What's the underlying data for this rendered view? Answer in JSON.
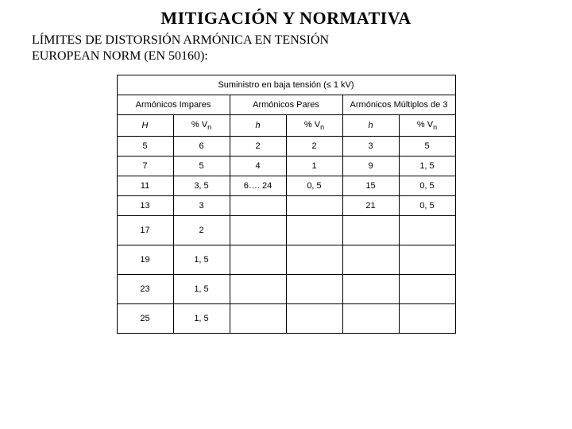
{
  "title": "MITIGACIÓN Y NORMATIVA",
  "subtitle1": "LÍMITES DE DISTORSIÓN ARMÓNICA EN TENSIÓN",
  "subtitle2": "EUROPEAN NORM (EN 50160):",
  "table": {
    "caption": "Suministro en baja tensión (≤ 1 kV)",
    "group_headers": [
      "Armónicos Impares",
      "Armónicos Pares",
      "Armónicos Múltiplos de 3"
    ],
    "col_headers": {
      "h_label": "H",
      "h_lower": "h",
      "v_label": "% V",
      "v_sub": "n"
    },
    "rows": [
      {
        "h1": "5",
        "v1": "6",
        "h2": "2",
        "v2": "2",
        "h3": "3",
        "v3": "5"
      },
      {
        "h1": "7",
        "v1": "5",
        "h2": "4",
        "v2": "1",
        "h3": "9",
        "v3": "1, 5"
      },
      {
        "h1": "11",
        "v1": "3, 5",
        "h2": "6…. 24",
        "v2": "0, 5",
        "h3": "15",
        "v3": "0, 5"
      },
      {
        "h1": "13",
        "v1": "3",
        "h2": "",
        "v2": "",
        "h3": "21",
        "v3": "0, 5"
      },
      {
        "h1": "17",
        "v1": "2",
        "h2": "",
        "v2": "",
        "h3": "",
        "v3": ""
      },
      {
        "h1": "19",
        "v1": "1, 5",
        "h2": "",
        "v2": "",
        "h3": "",
        "v3": ""
      },
      {
        "h1": "23",
        "v1": "1, 5",
        "h2": "",
        "v2": "",
        "h3": "",
        "v3": ""
      },
      {
        "h1": "25",
        "v1": "1, 5",
        "h2": "",
        "v2": "",
        "h3": "",
        "v3": ""
      }
    ]
  }
}
